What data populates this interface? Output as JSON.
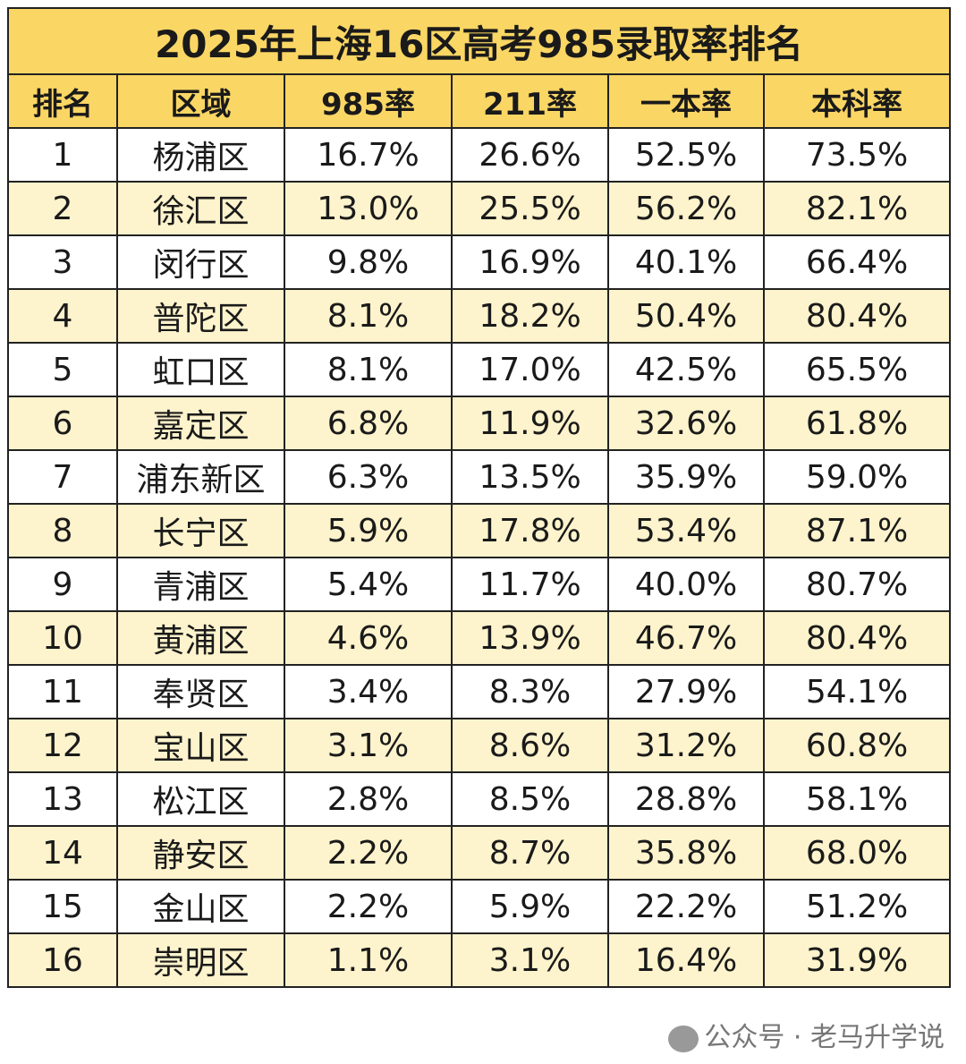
{
  "chart_data": {
    "type": "table",
    "title": "2025年上海16区高考985录取率排名",
    "columns": [
      "排名",
      "区域",
      "985率",
      "211率",
      "一本率",
      "本科率"
    ],
    "rows": [
      [
        "1",
        "杨浦区",
        "16.7%",
        "26.6%",
        "52.5%",
        "73.5%"
      ],
      [
        "2",
        "徐汇区",
        "13.0%",
        "25.5%",
        "56.2%",
        "82.1%"
      ],
      [
        "3",
        "闵行区",
        "9.8%",
        "16.9%",
        "40.1%",
        "66.4%"
      ],
      [
        "4",
        "普陀区",
        "8.1%",
        "18.2%",
        "50.4%",
        "80.4%"
      ],
      [
        "5",
        "虹口区",
        "8.1%",
        "17.0%",
        "42.5%",
        "65.5%"
      ],
      [
        "6",
        "嘉定区",
        "6.8%",
        "11.9%",
        "32.6%",
        "61.8%"
      ],
      [
        "7",
        "浦东新区",
        "6.3%",
        "13.5%",
        "35.9%",
        "59.0%"
      ],
      [
        "8",
        "长宁区",
        "5.9%",
        "17.8%",
        "53.4%",
        "87.1%"
      ],
      [
        "9",
        "青浦区",
        "5.4%",
        "11.7%",
        "40.0%",
        "80.7%"
      ],
      [
        "10",
        "黄浦区",
        "4.6%",
        "13.9%",
        "46.7%",
        "80.4%"
      ],
      [
        "11",
        "奉贤区",
        "3.4%",
        "8.3%",
        "27.9%",
        "54.1%"
      ],
      [
        "12",
        "宝山区",
        "3.1%",
        "8.6%",
        "31.2%",
        "60.8%"
      ],
      [
        "13",
        "松江区",
        "2.8%",
        "8.5%",
        "28.8%",
        "58.1%"
      ],
      [
        "14",
        "静安区",
        "2.2%",
        "8.7%",
        "35.8%",
        "68.0%"
      ],
      [
        "15",
        "金山区",
        "2.2%",
        "5.9%",
        "22.2%",
        "51.2%"
      ],
      [
        "16",
        "崇明区",
        "1.1%",
        "3.1%",
        "16.4%",
        "31.9%"
      ]
    ],
    "colors": {
      "header": "#fad664",
      "stripe": "#fdf3cc",
      "border": "#222222"
    }
  },
  "watermark": "公众号 · 老马升学说"
}
